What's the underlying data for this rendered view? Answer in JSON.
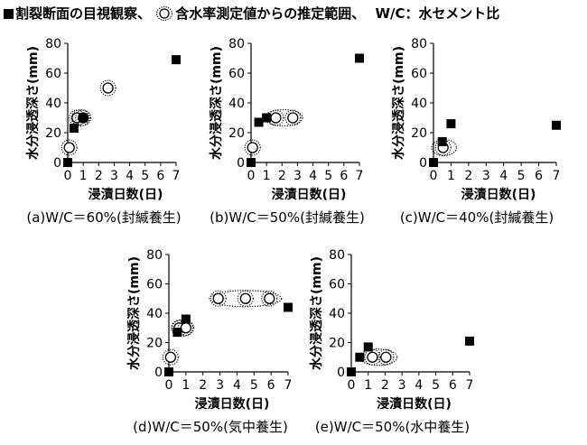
{
  "legend": {
    "cracked_label": "割裂断面の目視観察、",
    "moisture_label": "含水率測定値からの推定範囲、",
    "wc_note": "W/C：水セメント比"
  },
  "chart_data": [
    {
      "type": "scatter",
      "caption": "(a)W/C＝60%(封緘養生)",
      "xlabel": "浸漬日数(日)",
      "ylabel": "水分浸透深さ(mm)",
      "xlim": [
        0,
        7
      ],
      "ylim": [
        0,
        80
      ],
      "xticks": [
        0,
        1,
        2,
        3,
        4,
        5,
        6,
        7
      ],
      "yticks": [
        0,
        20,
        40,
        60,
        80
      ],
      "grid": false,
      "series": [
        {
          "name": "割裂断面の目視観察",
          "marker": "square",
          "x": [
            0,
            0.4,
            1,
            7
          ],
          "y": [
            0,
            23,
            30,
            69
          ]
        },
        {
          "name": "含水率測定値からの推定範囲",
          "marker": "circle",
          "x": [
            0.1,
            0.6,
            1.0,
            2.6
          ],
          "y": [
            10,
            30,
            30,
            50
          ]
        }
      ],
      "ranges": [
        {
          "x": [
            0.55,
            1.1
          ],
          "y": 30
        }
      ]
    },
    {
      "type": "scatter",
      "caption": "(b)W/C＝50%(封緘養生)",
      "xlabel": "浸漬日数(日)",
      "ylabel": "水分浸透深さ(mm)",
      "xlim": [
        0,
        7
      ],
      "ylim": [
        0,
        80
      ],
      "xticks": [
        0,
        1,
        2,
        3,
        4,
        5,
        6,
        7
      ],
      "yticks": [
        0,
        20,
        40,
        60,
        80
      ],
      "grid": false,
      "series": [
        {
          "name": "割裂断面の目視観察",
          "marker": "square",
          "x": [
            0,
            0.5,
            1,
            7
          ],
          "y": [
            0,
            27,
            30,
            70
          ]
        },
        {
          "name": "含水率測定値からの推定範囲",
          "marker": "circle",
          "x": [
            0.1,
            1.6,
            2.7
          ],
          "y": [
            10,
            30,
            30
          ]
        }
      ],
      "ranges": [
        {
          "x": [
            1.1,
            3.1
          ],
          "y": 30
        }
      ]
    },
    {
      "type": "scatter",
      "caption": "(c)W/C＝40%(封緘養生)",
      "xlabel": "浸漬日数(日)",
      "ylabel": "水分浸透深さ(mm)",
      "xlim": [
        0,
        7
      ],
      "ylim": [
        0,
        80
      ],
      "xticks": [
        0,
        1,
        2,
        3,
        4,
        5,
        6,
        7
      ],
      "yticks": [
        0,
        20,
        40,
        60,
        80
      ],
      "grid": false,
      "series": [
        {
          "name": "割裂断面の目視観察",
          "marker": "square",
          "x": [
            0,
            0.5,
            1,
            7
          ],
          "y": [
            0,
            14,
            26,
            25
          ]
        },
        {
          "name": "含水率測定値からの推定範囲",
          "marker": "circle",
          "x": [
            0.55
          ],
          "y": [
            10
          ]
        }
      ],
      "ranges": [
        {
          "x": [
            0.1,
            1.1
          ],
          "y": 10
        }
      ]
    },
    {
      "type": "scatter",
      "caption": "(d)W/C＝50%(気中養生)",
      "xlabel": "浸漬日数(日)",
      "ylabel": "水分浸透深さ(mm)",
      "xlim": [
        0,
        7
      ],
      "ylim": [
        0,
        80
      ],
      "xticks": [
        0,
        1,
        2,
        3,
        4,
        5,
        6,
        7
      ],
      "yticks": [
        0,
        20,
        40,
        60,
        80
      ],
      "grid": false,
      "series": [
        {
          "name": "割裂断面の目視観察",
          "marker": "square",
          "x": [
            0,
            0.5,
            1,
            7
          ],
          "y": [
            0,
            27,
            36,
            44
          ]
        },
        {
          "name": "含水率測定値からの推定範囲",
          "marker": "circle",
          "x": [
            0.1,
            0.6,
            1.0,
            2.9,
            4.5,
            5.9
          ],
          "y": [
            10,
            30,
            30,
            50,
            50,
            50
          ]
        }
      ],
      "ranges": [
        {
          "x": [
            0.4,
            1.2
          ],
          "y": 30
        },
        {
          "x": [
            2.6,
            6.4
          ],
          "y": 50
        }
      ]
    },
    {
      "type": "scatter",
      "caption": "(e)W/C＝50%(水中養生)",
      "xlabel": "浸漬日数(日)",
      "ylabel": "水分浸透深さ(mm)",
      "xlim": [
        0,
        7
      ],
      "ylim": [
        0,
        80
      ],
      "xticks": [
        0,
        1,
        2,
        3,
        4,
        5,
        6,
        7
      ],
      "yticks": [
        0,
        20,
        40,
        60,
        80
      ],
      "grid": false,
      "series": [
        {
          "name": "割裂断面の目視観察",
          "marker": "square",
          "x": [
            0,
            0.5,
            1,
            7
          ],
          "y": [
            0,
            10,
            17,
            21
          ]
        },
        {
          "name": "含水率測定値からの推定範囲",
          "marker": "circle",
          "x": [
            1.25,
            2.05
          ],
          "y": [
            10,
            10
          ]
        }
      ],
      "ranges": [
        {
          "x": [
            0.7,
            2.5
          ],
          "y": 10
        }
      ]
    }
  ]
}
